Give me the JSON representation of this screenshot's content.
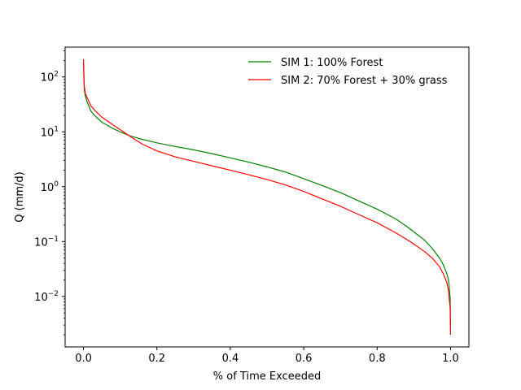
{
  "chart_data": {
    "type": "line",
    "title": "",
    "xlabel": "% of Time Exceeded",
    "ylabel": "Q (mm/d)",
    "xscale": "linear",
    "yscale": "log",
    "xlim": [
      -0.05,
      1.05
    ],
    "ylim": [
      0.0012,
      350
    ],
    "grid": false,
    "legend": {
      "placement": "top-right",
      "frame": false
    },
    "x_ticks": [
      {
        "value": 0.0,
        "label": "0.0"
      },
      {
        "value": 0.2,
        "label": "0.2"
      },
      {
        "value": 0.4,
        "label": "0.4"
      },
      {
        "value": 0.6,
        "label": "0.6"
      },
      {
        "value": 0.8,
        "label": "0.8"
      },
      {
        "value": 1.0,
        "label": "1.0"
      }
    ],
    "y_ticks": [
      {
        "value": 0.01,
        "base": "10",
        "exp": "−2"
      },
      {
        "value": 0.1,
        "base": "10",
        "exp": "−1"
      },
      {
        "value": 1,
        "base": "10",
        "exp": "0"
      },
      {
        "value": 10,
        "base": "10",
        "exp": "1"
      },
      {
        "value": 100,
        "base": "10",
        "exp": "2"
      }
    ],
    "series": [
      {
        "name": "SIM 1: 100% Forest",
        "color": "#008000",
        "points": [
          [
            0.0,
            180
          ],
          [
            0.002,
            60
          ],
          [
            0.005,
            45
          ],
          [
            0.01,
            35
          ],
          [
            0.02,
            24
          ],
          [
            0.03,
            20
          ],
          [
            0.05,
            15
          ],
          [
            0.08,
            11.5
          ],
          [
            0.1,
            10
          ],
          [
            0.13,
            8.3
          ],
          [
            0.16,
            7.3
          ],
          [
            0.2,
            6.3
          ],
          [
            0.25,
            5.4
          ],
          [
            0.3,
            4.7
          ],
          [
            0.35,
            4.0
          ],
          [
            0.4,
            3.35
          ],
          [
            0.45,
            2.8
          ],
          [
            0.5,
            2.3
          ],
          [
            0.55,
            1.85
          ],
          [
            0.6,
            1.4
          ],
          [
            0.65,
            1.05
          ],
          [
            0.7,
            0.78
          ],
          [
            0.75,
            0.55
          ],
          [
            0.8,
            0.39
          ],
          [
            0.85,
            0.26
          ],
          [
            0.88,
            0.19
          ],
          [
            0.9,
            0.15
          ],
          [
            0.93,
            0.105
          ],
          [
            0.95,
            0.075
          ],
          [
            0.97,
            0.05
          ],
          [
            0.98,
            0.038
          ],
          [
            0.99,
            0.026
          ],
          [
            0.995,
            0.019
          ],
          [
            0.999,
            0.009
          ],
          [
            1.0,
            0.003
          ]
        ]
      },
      {
        "name": "SIM 2: 70% Forest + 30% grass",
        "color": "#ff0000",
        "points": [
          [
            0.0,
            210
          ],
          [
            0.002,
            70
          ],
          [
            0.005,
            50
          ],
          [
            0.01,
            42
          ],
          [
            0.02,
            30
          ],
          [
            0.03,
            25
          ],
          [
            0.05,
            18.5
          ],
          [
            0.08,
            13.5
          ],
          [
            0.1,
            11
          ],
          [
            0.13,
            8.0
          ],
          [
            0.16,
            6.0
          ],
          [
            0.2,
            4.5
          ],
          [
            0.25,
            3.5
          ],
          [
            0.3,
            2.9
          ],
          [
            0.35,
            2.4
          ],
          [
            0.4,
            2.0
          ],
          [
            0.45,
            1.65
          ],
          [
            0.5,
            1.35
          ],
          [
            0.55,
            1.08
          ],
          [
            0.6,
            0.82
          ],
          [
            0.65,
            0.6
          ],
          [
            0.7,
            0.44
          ],
          [
            0.75,
            0.31
          ],
          [
            0.8,
            0.22
          ],
          [
            0.85,
            0.145
          ],
          [
            0.88,
            0.11
          ],
          [
            0.9,
            0.09
          ],
          [
            0.93,
            0.065
          ],
          [
            0.95,
            0.05
          ],
          [
            0.97,
            0.035
          ],
          [
            0.98,
            0.026
          ],
          [
            0.99,
            0.018
          ],
          [
            0.995,
            0.012
          ],
          [
            0.999,
            0.006
          ],
          [
            1.0,
            0.002
          ]
        ]
      }
    ]
  }
}
